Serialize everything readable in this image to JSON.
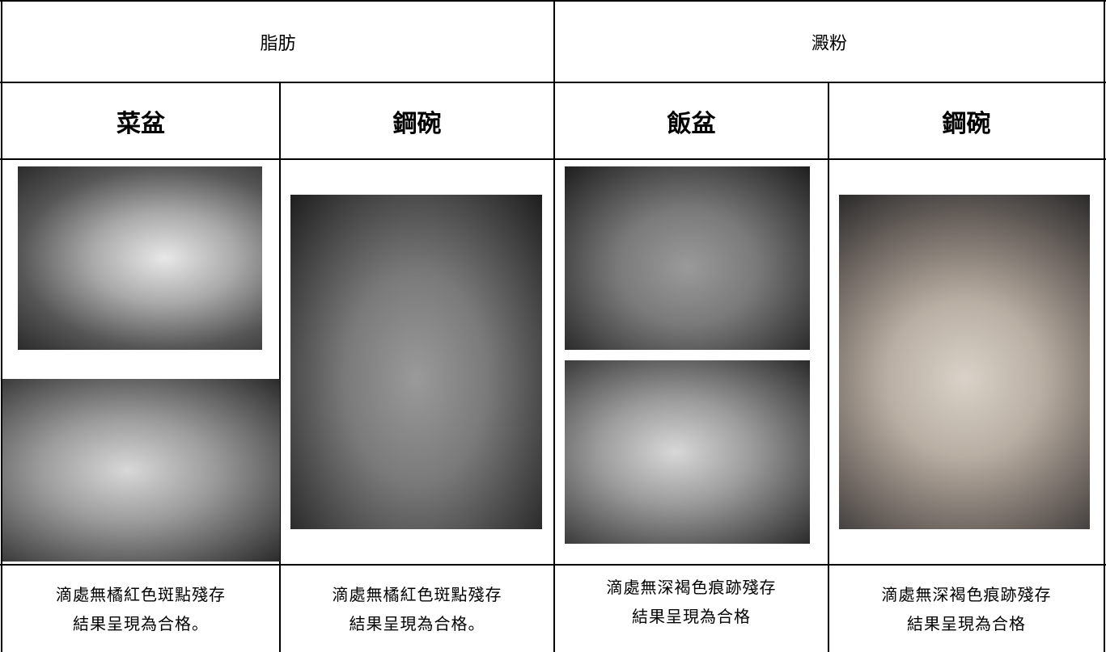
{
  "table": {
    "header": [
      "脂肪",
      "澱粉"
    ],
    "subheader": [
      "菜盆",
      "鋼碗",
      "飯盆",
      "鋼碗"
    ],
    "captions": [
      [
        "滴處無橘紅色斑點殘存",
        "結果呈現為合格。"
      ],
      [
        "滴處無橘紅色斑點殘存",
        "結果呈現為合格。"
      ],
      [
        "滴處無深褐色痕跡殘存",
        "結果呈現為合格"
      ],
      [
        "滴處無深褐色痕跡殘存",
        "結果呈現為合格"
      ]
    ]
  }
}
